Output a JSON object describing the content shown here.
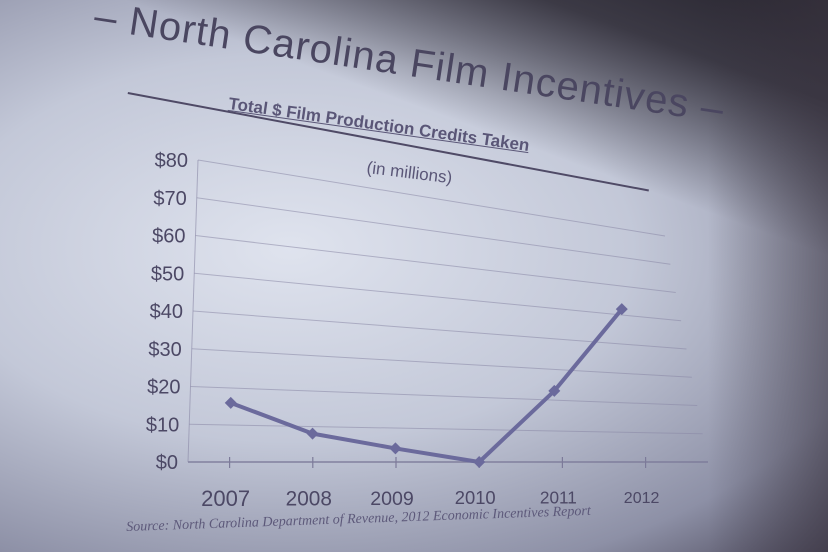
{
  "slide": {
    "title": "– North Carolina Film Incentives –",
    "subtitle": "Total $ Film Production Credits Taken",
    "subtitle2": "(in millions)",
    "source": "Source: North Carolina Department of Revenue, 2012 Economic Incentives Report"
  },
  "chart_data": {
    "type": "line",
    "title": "Total $ Film Production Credits Taken",
    "subtitle": "(in millions)",
    "categories": [
      "2007",
      "2008",
      "2009",
      "2010",
      "2011",
      "2012"
    ],
    "series": [
      {
        "values": [
          16,
          8,
          4,
          0,
          23,
          52
        ]
      }
    ],
    "y_tick_labels": [
      "$0",
      "$10",
      "$20",
      "$30",
      "$40",
      "$50",
      "$60",
      "$70",
      "$80"
    ],
    "ylim": [
      0,
      80
    ],
    "grid": true,
    "legend": "none",
    "colors": {
      "line": "#6b6a9c",
      "grid": "#8a88a6",
      "text": "#4c4865"
    }
  }
}
